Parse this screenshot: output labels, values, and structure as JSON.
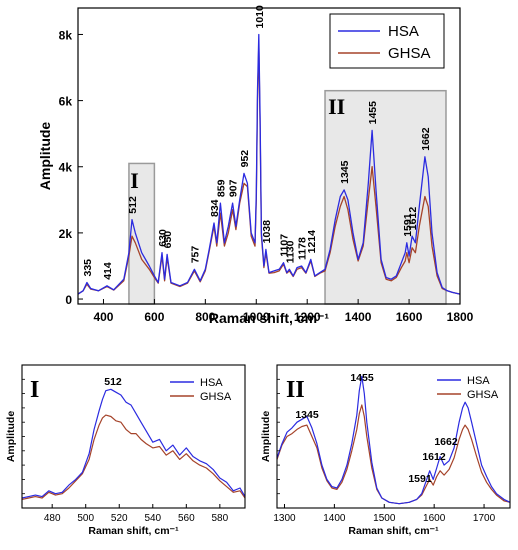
{
  "colors": {
    "hsa": "#2b2be0",
    "ghsa": "#a5432a",
    "region_fill": "#e8e8e8",
    "region_stroke": "#9a9a9a"
  },
  "chart_data": [
    {
      "type": "line",
      "panel": "main",
      "xlabel": "Raman shift, cm⁻¹",
      "ylabel": "Amplitude",
      "xlim": [
        300,
        1800
      ],
      "ylim": [
        -150,
        8800
      ],
      "xticks": [
        400,
        600,
        800,
        1000,
        1200,
        1400,
        1600,
        1800
      ],
      "xtick_labels": [
        "400",
        "600",
        "800",
        "1000",
        "1200",
        "1400",
        "1600",
        "1800"
      ],
      "yticks": [
        0,
        2000,
        4000,
        6000,
        8000
      ],
      "ytick_labels": [
        "0",
        "2k",
        "4k",
        "6k",
        "8k"
      ],
      "legend": {
        "position": "top-right",
        "entries": [
          "HSA",
          "GHSA"
        ]
      },
      "regions": [
        {
          "label": "I",
          "x": [
            500,
            600
          ],
          "y_top": 4100
        },
        {
          "label": "II",
          "x": [
            1270,
            1745
          ],
          "y_top": 6300
        }
      ],
      "peak_labels": [
        "335",
        "414",
        "512",
        "630",
        "650",
        "757",
        "834",
        "859",
        "907",
        "952",
        "1010",
        "1038",
        "1107",
        "1130",
        "1178",
        "1214",
        "1345",
        "1455",
        "1591",
        "1612",
        "1662"
      ],
      "x": [
        300,
        320,
        335,
        350,
        380,
        414,
        440,
        480,
        500,
        512,
        525,
        550,
        580,
        600,
        615,
        630,
        640,
        650,
        665,
        700,
        730,
        757,
        780,
        800,
        815,
        834,
        845,
        859,
        875,
        890,
        907,
        920,
        935,
        952,
        965,
        980,
        995,
        1000,
        1005,
        1010,
        1015,
        1020,
        1030,
        1038,
        1050,
        1070,
        1090,
        1107,
        1120,
        1130,
        1145,
        1160,
        1178,
        1195,
        1214,
        1230,
        1250,
        1270,
        1290,
        1310,
        1330,
        1345,
        1360,
        1380,
        1400,
        1420,
        1440,
        1455,
        1470,
        1490,
        1510,
        1530,
        1550,
        1570,
        1585,
        1591,
        1600,
        1612,
        1625,
        1640,
        1662,
        1675,
        1690,
        1710,
        1730,
        1750,
        1770,
        1800
      ],
      "series": [
        {
          "name": "HSA",
          "values": [
            150,
            250,
            500,
            320,
            250,
            400,
            280,
            600,
            1400,
            2400,
            2000,
            1400,
            1000,
            700,
            500,
            1400,
            600,
            1350,
            500,
            400,
            500,
            900,
            550,
            900,
            1500,
            2300,
            1700,
            2900,
            1700,
            2200,
            2900,
            2200,
            3000,
            3800,
            3500,
            2000,
            1700,
            3200,
            6300,
            8000,
            5500,
            2000,
            1000,
            1500,
            800,
            850,
            900,
            1100,
            800,
            900,
            700,
            950,
            1000,
            800,
            1200,
            700,
            800,
            900,
            1500,
            2400,
            3100,
            3300,
            3000,
            2000,
            1200,
            1700,
            3500,
            5100,
            3300,
            1200,
            650,
            600,
            700,
            1100,
            1400,
            1700,
            1300,
            1900,
            1700,
            2800,
            4300,
            3700,
            2000,
            800,
            350,
            250,
            200,
            150
          ]
        },
        {
          "name": "GHSA",
          "values": [
            150,
            250,
            450,
            300,
            250,
            380,
            270,
            550,
            1300,
            1900,
            1700,
            1200,
            900,
            650,
            480,
            1300,
            550,
            1250,
            480,
            380,
            480,
            850,
            520,
            850,
            1450,
            2200,
            1600,
            2600,
            1600,
            2000,
            2700,
            2100,
            2900,
            3500,
            3400,
            1900,
            1600,
            3000,
            6000,
            7700,
            5200,
            1900,
            950,
            1400,
            780,
            800,
            850,
            1050,
            780,
            850,
            680,
            900,
            950,
            780,
            1150,
            680,
            780,
            850,
            1400,
            2200,
            2800,
            3100,
            2700,
            1800,
            1150,
            1600,
            3000,
            4000,
            2800,
            1100,
            600,
            550,
            650,
            950,
            1150,
            1400,
            1100,
            1550,
            1400,
            2200,
            3100,
            2800,
            1600,
            700,
            320,
            250,
            200,
            150
          ]
        }
      ]
    },
    {
      "type": "line",
      "panel": "I",
      "label": "I",
      "xlabel": "Raman shift, cm⁻¹",
      "ylabel": "Amplitude",
      "xlim": [
        462,
        595
      ],
      "ylim": [
        0,
        1
      ],
      "xticks": [
        480,
        500,
        520,
        540,
        560,
        580
      ],
      "xtick_labels": [
        "480",
        "500",
        "520",
        "540",
        "560",
        "580"
      ],
      "legend": {
        "position": "top-right",
        "entries": [
          "HSA",
          "GHSA"
        ]
      },
      "peak_labels": [
        "512"
      ],
      "x": [
        462,
        466,
        470,
        474,
        478,
        482,
        486,
        490,
        494,
        498,
        502,
        505,
        508,
        510,
        512,
        515,
        518,
        521,
        524,
        527,
        530,
        533,
        536,
        540,
        544,
        548,
        552,
        556,
        560,
        564,
        568,
        572,
        576,
        580,
        584,
        588,
        592,
        595
      ],
      "series": [
        {
          "name": "HSA",
          "values": [
            0.07,
            0.08,
            0.09,
            0.08,
            0.12,
            0.1,
            0.11,
            0.16,
            0.2,
            0.25,
            0.38,
            0.55,
            0.68,
            0.76,
            0.82,
            0.83,
            0.81,
            0.79,
            0.74,
            0.72,
            0.66,
            0.6,
            0.54,
            0.46,
            0.48,
            0.4,
            0.44,
            0.37,
            0.42,
            0.36,
            0.33,
            0.31,
            0.27,
            0.21,
            0.18,
            0.12,
            0.14,
            0.08
          ]
        },
        {
          "name": "GHSA",
          "values": [
            0.06,
            0.07,
            0.08,
            0.07,
            0.11,
            0.09,
            0.1,
            0.14,
            0.19,
            0.24,
            0.34,
            0.48,
            0.58,
            0.63,
            0.65,
            0.64,
            0.61,
            0.6,
            0.55,
            0.52,
            0.52,
            0.48,
            0.45,
            0.42,
            0.43,
            0.37,
            0.4,
            0.34,
            0.38,
            0.33,
            0.3,
            0.28,
            0.24,
            0.19,
            0.15,
            0.11,
            0.12,
            0.07
          ]
        }
      ]
    },
    {
      "type": "line",
      "panel": "II",
      "label": "II",
      "xlabel": "Raman shift, cm⁻¹",
      "ylabel": "Amplitude",
      "xlim": [
        1285,
        1752
      ],
      "ylim": [
        0,
        1
      ],
      "xticks": [
        1300,
        1400,
        1500,
        1600,
        1700
      ],
      "xtick_labels": [
        "1300",
        "1400",
        "1500",
        "1600",
        "1700"
      ],
      "legend": {
        "position": "top-right",
        "entries": [
          "HSA",
          "GHSA"
        ]
      },
      "peak_labels": [
        "1345",
        "1455",
        "1591",
        "1612",
        "1662"
      ],
      "x": [
        1285,
        1295,
        1305,
        1315,
        1325,
        1335,
        1345,
        1355,
        1365,
        1375,
        1385,
        1395,
        1405,
        1415,
        1425,
        1435,
        1445,
        1450,
        1455,
        1460,
        1465,
        1475,
        1485,
        1495,
        1510,
        1530,
        1550,
        1565,
        1575,
        1585,
        1591,
        1598,
        1605,
        1612,
        1620,
        1630,
        1640,
        1650,
        1657,
        1662,
        1668,
        1675,
        1685,
        1695,
        1705,
        1715,
        1725,
        1740,
        1752
      ],
      "series": [
        {
          "name": "HSA",
          "values": [
            0.35,
            0.45,
            0.53,
            0.56,
            0.6,
            0.62,
            0.64,
            0.56,
            0.45,
            0.3,
            0.2,
            0.15,
            0.14,
            0.2,
            0.3,
            0.45,
            0.65,
            0.82,
            0.92,
            0.8,
            0.6,
            0.32,
            0.14,
            0.07,
            0.04,
            0.03,
            0.04,
            0.06,
            0.1,
            0.2,
            0.26,
            0.2,
            0.28,
            0.36,
            0.3,
            0.33,
            0.42,
            0.6,
            0.7,
            0.74,
            0.7,
            0.6,
            0.45,
            0.3,
            0.22,
            0.15,
            0.1,
            0.06,
            0.04
          ]
        },
        {
          "name": "GHSA",
          "values": [
            0.34,
            0.44,
            0.5,
            0.52,
            0.55,
            0.57,
            0.58,
            0.5,
            0.42,
            0.28,
            0.19,
            0.14,
            0.13,
            0.18,
            0.27,
            0.4,
            0.55,
            0.66,
            0.72,
            0.64,
            0.5,
            0.28,
            0.13,
            0.07,
            0.04,
            0.03,
            0.04,
            0.06,
            0.09,
            0.16,
            0.2,
            0.16,
            0.22,
            0.26,
            0.23,
            0.27,
            0.35,
            0.48,
            0.55,
            0.58,
            0.55,
            0.48,
            0.36,
            0.25,
            0.18,
            0.13,
            0.09,
            0.05,
            0.04
          ]
        }
      ]
    }
  ]
}
